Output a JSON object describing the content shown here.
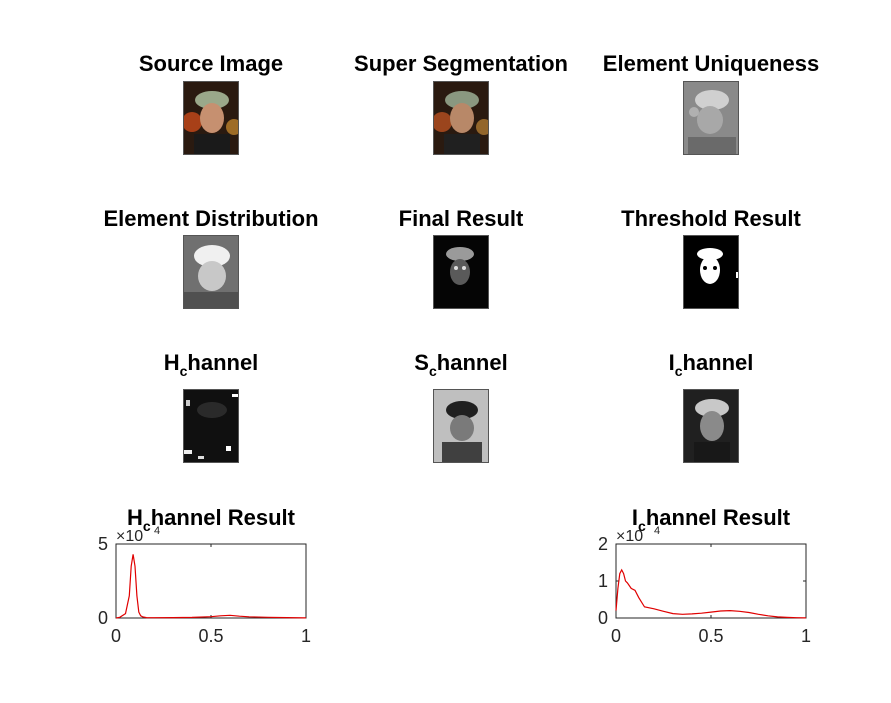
{
  "panels": {
    "source": {
      "title": "Source Image"
    },
    "superseg": {
      "title": "Super Segmentation"
    },
    "uniqueness": {
      "title": "Element Uniqueness"
    },
    "distribution": {
      "title": "Element Distribution"
    },
    "final": {
      "title": "Final Result"
    },
    "threshold": {
      "title": "Threshold Result"
    },
    "hchan": {
      "title_main": "H",
      "title_sub": "c",
      "title_rest": "hannel"
    },
    "schan": {
      "title_main": "S",
      "title_sub": "c",
      "title_rest": "hannel"
    },
    "ichan": {
      "title_main": "I",
      "title_sub": "c",
      "title_rest": "hannel"
    },
    "hresult": {
      "title_main": "H",
      "title_sub": "c",
      "title_rest": "hannel Result"
    },
    "iresult": {
      "title_main": "I",
      "title_sub": "c",
      "title_rest": "hannel Result"
    }
  },
  "colors": {
    "line": "#e00000",
    "axis": "#262626"
  },
  "chart_data": [
    {
      "type": "line",
      "title": "H_channel Result",
      "xlim": [
        0,
        1
      ],
      "ylim": [
        0,
        50000
      ],
      "xticks": [
        "0",
        "0.5",
        "1"
      ],
      "yticks": [
        "0",
        "5"
      ],
      "exponent_label": "×10",
      "exponent_power": "4",
      "x": [
        0,
        0.02,
        0.05,
        0.07,
        0.08,
        0.09,
        0.1,
        0.11,
        0.12,
        0.13,
        0.14,
        0.16,
        0.2,
        0.3,
        0.4,
        0.5,
        0.55,
        0.6,
        0.65,
        0.7,
        0.8,
        0.9,
        1.0
      ],
      "y": [
        0,
        500,
        3000,
        15000,
        35000,
        43000,
        35000,
        15000,
        4000,
        1500,
        800,
        300,
        200,
        300,
        400,
        900,
        1500,
        1800,
        1200,
        800,
        500,
        300,
        100
      ]
    },
    {
      "type": "line",
      "title": "I_channel Result",
      "xlim": [
        0,
        1
      ],
      "ylim": [
        0,
        20000
      ],
      "xticks": [
        "0",
        "0.5",
        "1"
      ],
      "yticks": [
        "0",
        "1",
        "2"
      ],
      "exponent_label": "×10",
      "exponent_power": "4",
      "x": [
        0,
        0.01,
        0.02,
        0.03,
        0.04,
        0.05,
        0.06,
        0.08,
        0.1,
        0.12,
        0.15,
        0.2,
        0.25,
        0.3,
        0.35,
        0.4,
        0.45,
        0.5,
        0.55,
        0.6,
        0.65,
        0.7,
        0.75,
        0.8,
        0.85,
        0.9,
        0.95,
        1.0
      ],
      "y": [
        2000,
        8000,
        12000,
        13000,
        12000,
        10000,
        9500,
        8000,
        7500,
        5500,
        3000,
        2500,
        1800,
        1200,
        1000,
        1100,
        1300,
        1600,
        1900,
        2000,
        1800,
        1500,
        1000,
        600,
        300,
        150,
        80,
        30
      ]
    }
  ]
}
